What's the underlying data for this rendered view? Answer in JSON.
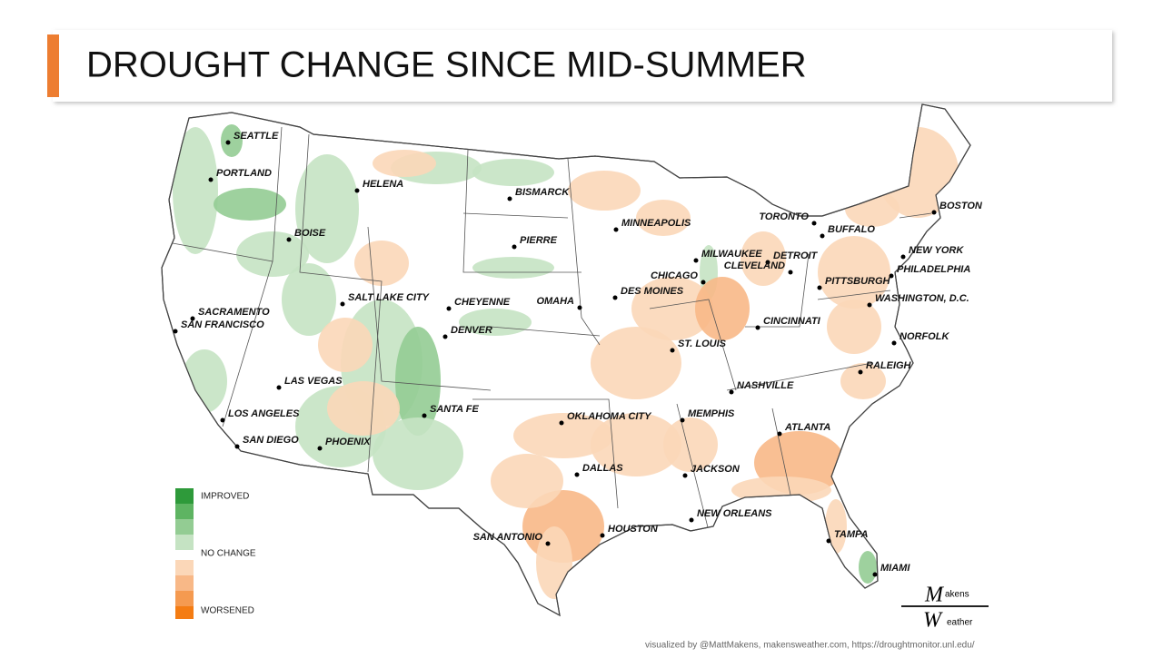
{
  "header": {
    "title": "DROUGHT CHANGE SINCE MID-SUMMER"
  },
  "map": {
    "cities": [
      "SEATTLE",
      "PORTLAND",
      "HELENA",
      "BISMARCK",
      "BOISE",
      "MINNEAPOLIS",
      "TORONTO",
      "BOSTON",
      "BUFFALO",
      "PIERRE",
      "MILWAUKEE",
      "DETROIT",
      "NEW YORK",
      "SACRAMENTO",
      "SALT LAKE CITY",
      "CHEYENNE",
      "OMAHA",
      "DES MOINES",
      "CHICAGO",
      "CLEVELAND",
      "PITTSBURGH",
      "PHILADELPHIA",
      "WASHINGTON,  D.C.",
      "SAN FRANCISCO",
      "DENVER",
      "CINCINNATI",
      "ST. LOUIS",
      "NORFOLK",
      "RALEIGH",
      "LAS VEGAS",
      "NASHVILLE",
      "SANTA FE",
      "LOS ANGELES",
      "MEMPHIS",
      "OKLAHOMA CITY",
      "ATLANTA",
      "SAN DIEGO",
      "PHOENIX",
      "DALLAS",
      "JACKSON",
      "NEW ORLEANS",
      "HOUSTON",
      "SAN ANTONIO",
      "TAMPA",
      "MIAMI"
    ]
  },
  "legend": {
    "improved": "IMPROVED",
    "no_change": "NO CHANGE",
    "worsened": "WORSENED"
  },
  "logo": {
    "initial_1": "M",
    "rest_1": "akens",
    "initial_2": "W",
    "rest_2": "eather"
  },
  "credit": "visualized by @MattMakens, makensweather.com, https://droughtmonitor.unl.edu/"
}
